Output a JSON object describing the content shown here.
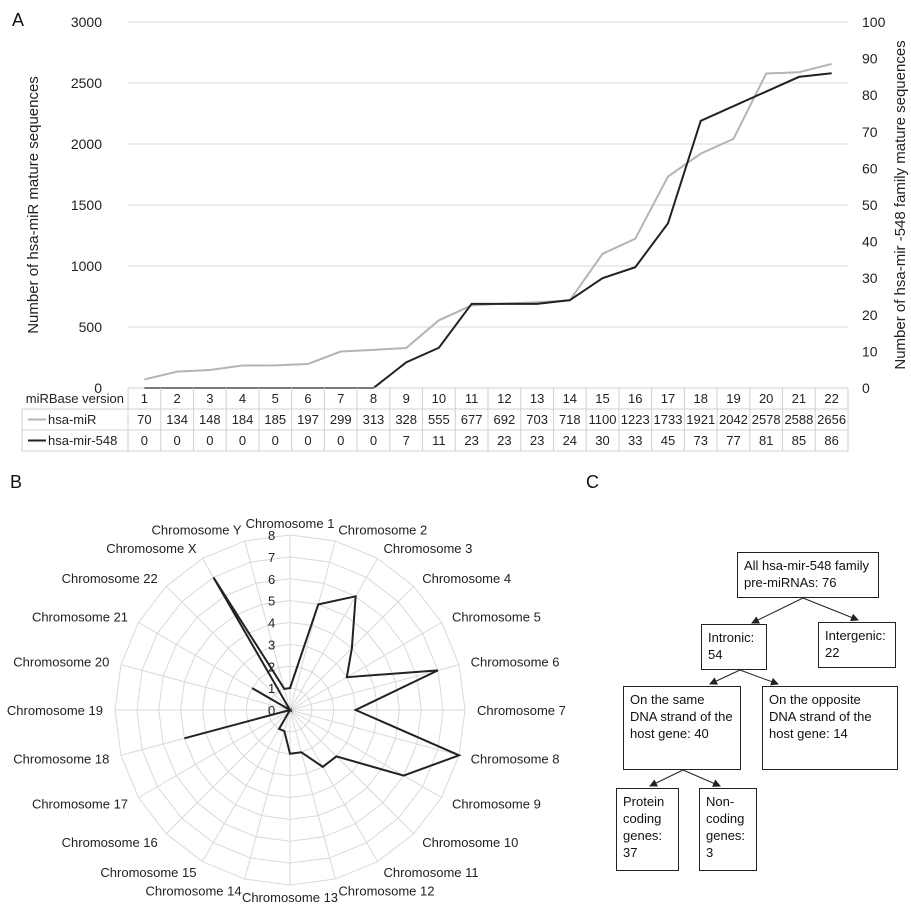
{
  "panels": {
    "a": "A",
    "b": "B",
    "c": "C"
  },
  "chart_data": [
    {
      "type": "line",
      "x": [
        1,
        2,
        3,
        4,
        5,
        6,
        7,
        8,
        9,
        10,
        11,
        12,
        13,
        14,
        15,
        16,
        17,
        18,
        19,
        20,
        21,
        22
      ],
      "x_header": "miRBase version",
      "ylabel": "Number of hsa-miR mature sequences",
      "y2label": "Number of hsa-mir -548 family mature sequences",
      "ylim": [
        0,
        3000
      ],
      "y2lim": [
        0,
        100
      ],
      "yticks": [
        0,
        500,
        1000,
        1500,
        2000,
        2500,
        3000
      ],
      "y2ticks": [
        0,
        10,
        20,
        30,
        40,
        50,
        60,
        70,
        80,
        90,
        100
      ],
      "grid": "horizontal",
      "series": [
        {
          "name": "hsa-miR",
          "axis": "left",
          "color": "#b4b4b4",
          "values": [
            70,
            134,
            148,
            184,
            185,
            197,
            299,
            313,
            328,
            555,
            677,
            692,
            703,
            718,
            1100,
            1223,
            1733,
            1921,
            2042,
            2578,
            2588,
            2656
          ]
        },
        {
          "name": "hsa-mir-548",
          "axis": "right",
          "color": "#222222",
          "values": [
            0,
            0,
            0,
            0,
            0,
            0,
            0,
            0,
            7,
            11,
            23,
            23,
            23,
            24,
            30,
            33,
            45,
            73,
            77,
            81,
            85,
            86
          ]
        }
      ]
    },
    {
      "type": "radar",
      "categories": [
        "Chromosome 1",
        "Chromosome 2",
        "Chromosome 3",
        "Chromosome 4",
        "Chromosome 5",
        "Chromosome 6",
        "Chromosome 7",
        "Chromosome 8",
        "Chromosome 9",
        "Chromosome 10",
        "Chromosome 11",
        "Chromosome 12",
        "Chromosome 13",
        "Chromosome 14",
        "Chromosome 15",
        "Chromosome 16",
        "Chromosome 17",
        "Chromosome 18",
        "Chromosome 19",
        "Chromosome 20",
        "Chromosome 21",
        "Chromosome 22",
        "Chromosome X",
        "Chromosome Y"
      ],
      "values": [
        1,
        5,
        6,
        4,
        3,
        7,
        3,
        8,
        6,
        3,
        3,
        2,
        2,
        1,
        1,
        0,
        0,
        5,
        0,
        0,
        2,
        0,
        7,
        1
      ],
      "rlim": [
        0,
        8
      ],
      "rticks": [
        0,
        1,
        2,
        3,
        4,
        5,
        6,
        7,
        8
      ],
      "color": "#222222"
    }
  ],
  "diagram": {
    "root": "All hsa-mir-548 family pre-miRNAs: 76",
    "intronic": "Intronic: 54",
    "intergenic": "Intergenic: 22",
    "same_strand": "On the same DNA strand of the host gene: 40",
    "opposite_strand": "On the opposite DNA strand of the host gene: 14",
    "protein_coding": "Protein coding genes: 37",
    "non_coding": "Non-coding genes: 3"
  }
}
